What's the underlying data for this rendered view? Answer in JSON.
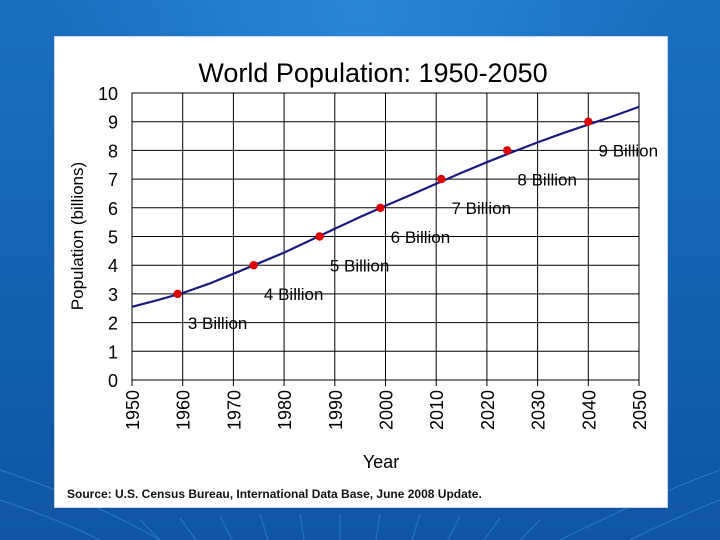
{
  "chart_data": {
    "type": "line",
    "title": "World Population: 1950-2050",
    "xlabel": "Year",
    "ylabel": "Population (billions)",
    "xlim": [
      1950,
      2050
    ],
    "ylim": [
      0,
      10
    ],
    "grid": true,
    "x_ticks": [
      "1950",
      "1960",
      "1970",
      "1980",
      "1990",
      "2000",
      "2010",
      "2020",
      "2030",
      "2040",
      "2050"
    ],
    "y_ticks": [
      "0",
      "1",
      "2",
      "3",
      "4",
      "5",
      "6",
      "7",
      "8",
      "9",
      "10"
    ],
    "series": [
      {
        "color": "#1a1a80",
        "x": [
          1950,
          1955,
          1960,
          1965,
          1970,
          1975,
          1980,
          1985,
          1990,
          1995,
          2000,
          2005,
          2010,
          2015,
          2020,
          2025,
          2030,
          2035,
          2040,
          2045,
          2050
        ],
        "y": [
          2.55,
          2.78,
          3.03,
          3.34,
          3.7,
          4.07,
          4.44,
          4.85,
          5.27,
          5.68,
          6.07,
          6.45,
          6.84,
          7.22,
          7.59,
          7.94,
          8.28,
          8.6,
          8.9,
          9.2,
          9.52
        ]
      }
    ],
    "milestones": {
      "color": "#dd0000",
      "points": [
        {
          "x": 1959,
          "y": 3,
          "label": "3 Billion"
        },
        {
          "x": 1974,
          "y": 4,
          "label": "4 Billion"
        },
        {
          "x": 1987,
          "y": 5,
          "label": "5 Billion"
        },
        {
          "x": 1999,
          "y": 6,
          "label": "6 Billion"
        },
        {
          "x": 2011,
          "y": 7,
          "label": "7 Billion"
        },
        {
          "x": 2024,
          "y": 8,
          "label": "8 Billion"
        },
        {
          "x": 2040,
          "y": 9,
          "label": "9 Billion"
        }
      ]
    }
  },
  "source_note": "Source: U.S. Census Bureau, International Data Base, June 2008 Update."
}
